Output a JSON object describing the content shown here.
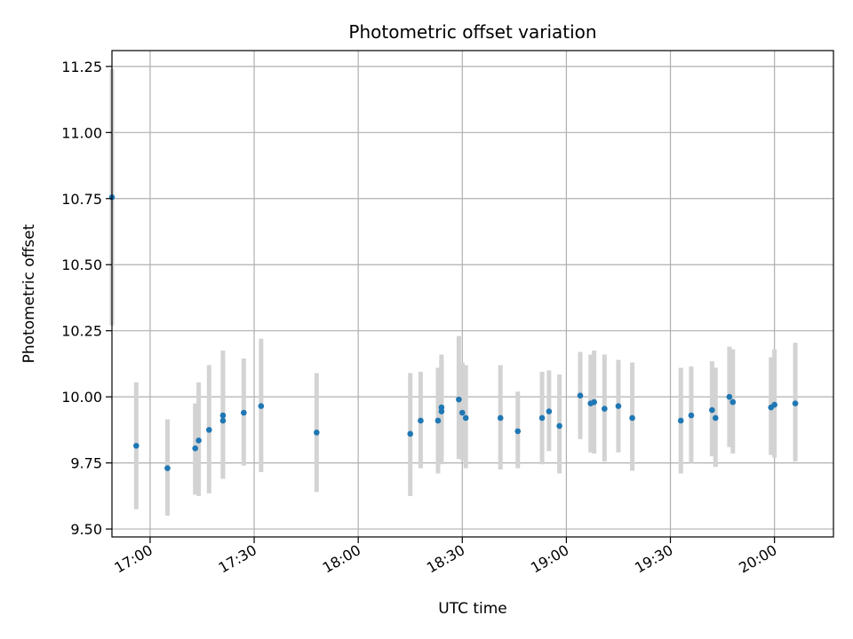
{
  "chart_data": {
    "type": "scatter",
    "title": "Photometric offset variation",
    "xlabel": "UTC time",
    "ylabel": "Photometric offset",
    "x_axis_type": "time",
    "xlim": [
      "16:49",
      "20:17"
    ],
    "ylim": [
      9.47,
      11.31
    ],
    "x_ticks": [
      "17:00",
      "17:30",
      "18:00",
      "18:30",
      "19:00",
      "19:30",
      "20:00"
    ],
    "y_ticks": [
      9.5,
      9.75,
      10.0,
      10.25,
      10.5,
      10.75,
      11.0,
      11.25
    ],
    "y_tick_labels": [
      "9.50",
      "9.75",
      "10.00",
      "10.25",
      "10.50",
      "10.75",
      "11.00",
      "11.25"
    ],
    "grid": true,
    "legend": "none",
    "point_color": "#1f77b4",
    "errorbar_color": "#d3d3d3",
    "series": [
      {
        "points": [
          {
            "x": "16:49",
            "y": 10.755,
            "lo": 10.27,
            "hi": 11.24
          },
          {
            "x": "16:56",
            "y": 9.815,
            "lo": 9.575,
            "hi": 10.055
          },
          {
            "x": "17:05",
            "y": 9.73,
            "lo": 9.55,
            "hi": 9.915
          },
          {
            "x": "17:13",
            "y": 9.805,
            "lo": 9.63,
            "hi": 9.975
          },
          {
            "x": "17:14",
            "y": 9.835,
            "lo": 9.625,
            "hi": 10.055
          },
          {
            "x": "17:17",
            "y": 9.875,
            "lo": 9.635,
            "hi": 10.12
          },
          {
            "x": "17:21",
            "y": 9.93,
            "lo": 9.69,
            "hi": 10.175
          },
          {
            "x": "17:21",
            "y": 9.91,
            "lo": 9.69,
            "hi": 10.135
          },
          {
            "x": "17:27",
            "y": 9.94,
            "lo": 9.74,
            "hi": 10.145
          },
          {
            "x": "17:32",
            "y": 9.965,
            "lo": 9.715,
            "hi": 10.22
          },
          {
            "x": "17:48",
            "y": 9.865,
            "lo": 9.64,
            "hi": 10.09
          },
          {
            "x": "18:15",
            "y": 9.86,
            "lo": 9.625,
            "hi": 10.09
          },
          {
            "x": "18:18",
            "y": 9.91,
            "lo": 9.73,
            "hi": 10.095
          },
          {
            "x": "18:23",
            "y": 9.91,
            "lo": 9.71,
            "hi": 10.11
          },
          {
            "x": "18:24",
            "y": 9.96,
            "lo": 9.78,
            "hi": 10.16
          },
          {
            "x": "18:24",
            "y": 9.945,
            "lo": 9.745,
            "hi": 10.14
          },
          {
            "x": "18:29",
            "y": 9.99,
            "lo": 9.765,
            "hi": 10.23
          },
          {
            "x": "18:30",
            "y": 9.94,
            "lo": 9.76,
            "hi": 10.13
          },
          {
            "x": "18:31",
            "y": 9.92,
            "lo": 9.73,
            "hi": 10.12
          },
          {
            "x": "18:41",
            "y": 9.92,
            "lo": 9.725,
            "hi": 10.12
          },
          {
            "x": "18:46",
            "y": 9.87,
            "lo": 9.73,
            "hi": 10.02
          },
          {
            "x": "18:53",
            "y": 9.92,
            "lo": 9.745,
            "hi": 10.095
          },
          {
            "x": "18:55",
            "y": 9.945,
            "lo": 9.795,
            "hi": 10.1
          },
          {
            "x": "18:58",
            "y": 9.89,
            "lo": 9.71,
            "hi": 10.085
          },
          {
            "x": "19:04",
            "y": 10.005,
            "lo": 9.84,
            "hi": 10.17
          },
          {
            "x": "19:07",
            "y": 9.975,
            "lo": 9.79,
            "hi": 10.16
          },
          {
            "x": "19:08",
            "y": 9.98,
            "lo": 9.785,
            "hi": 10.175
          },
          {
            "x": "19:11",
            "y": 9.955,
            "lo": 9.755,
            "hi": 10.16
          },
          {
            "x": "19:15",
            "y": 9.965,
            "lo": 9.79,
            "hi": 10.14
          },
          {
            "x": "19:19",
            "y": 9.92,
            "lo": 9.72,
            "hi": 10.13
          },
          {
            "x": "19:33",
            "y": 9.91,
            "lo": 9.71,
            "hi": 10.11
          },
          {
            "x": "19:36",
            "y": 9.93,
            "lo": 9.75,
            "hi": 10.115
          },
          {
            "x": "19:42",
            "y": 9.95,
            "lo": 9.775,
            "hi": 10.135
          },
          {
            "x": "19:43",
            "y": 9.92,
            "lo": 9.735,
            "hi": 10.11
          },
          {
            "x": "19:47",
            "y": 10.0,
            "lo": 9.81,
            "hi": 10.19
          },
          {
            "x": "19:48",
            "y": 9.98,
            "lo": 9.785,
            "hi": 10.18
          },
          {
            "x": "19:59",
            "y": 9.96,
            "lo": 9.78,
            "hi": 10.15
          },
          {
            "x": "20:00",
            "y": 9.97,
            "lo": 9.77,
            "hi": 10.18
          },
          {
            "x": "20:06",
            "y": 9.975,
            "lo": 9.755,
            "hi": 10.205
          }
        ]
      }
    ]
  }
}
